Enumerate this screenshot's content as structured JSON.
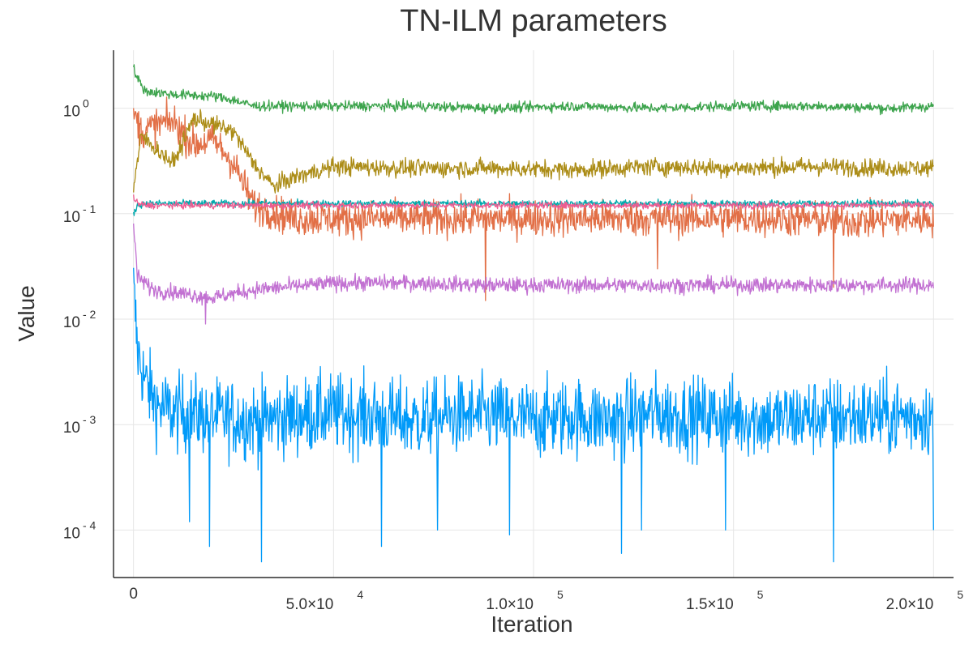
{
  "chart_data": {
    "type": "line",
    "title": "TN-ILM parameters",
    "xlabel": "Iteration",
    "ylabel": "Value",
    "xlim": [
      -5000,
      205000
    ],
    "ylim_log10": [
      -4.45,
      0.55
    ],
    "yscale": "log",
    "grid": true,
    "legend": "none",
    "x_ticks": [
      {
        "value": 0,
        "base": "0",
        "exp": ""
      },
      {
        "value": 50000,
        "base": "5.0×10",
        "exp": "4"
      },
      {
        "value": 100000,
        "base": "1.0×10",
        "exp": "5"
      },
      {
        "value": 150000,
        "base": "1.5×10",
        "exp": "5"
      },
      {
        "value": 200000,
        "base": "2.0×10",
        "exp": "5"
      }
    ],
    "y_ticks": [
      {
        "value": 1,
        "base": "10",
        "exp": "0"
      },
      {
        "value": 0.1,
        "base": "10",
        "exp": "- 1"
      },
      {
        "value": 0.01,
        "base": "10",
        "exp": "- 2"
      },
      {
        "value": 0.001,
        "base": "10",
        "exp": "- 3"
      },
      {
        "value": 0.0001,
        "base": "10",
        "exp": "- 4"
      }
    ],
    "series": [
      {
        "color": "#009af9",
        "x": [
          0,
          1000,
          3000,
          6000,
          10000,
          20000,
          30000,
          40000,
          50000,
          60000,
          70000,
          80000,
          90000,
          100000,
          110000,
          120000,
          130000,
          140000,
          150000,
          160000,
          170000,
          180000,
          190000,
          200000
        ],
        "y": [
          0.02,
          0.005,
          0.0025,
          0.0015,
          0.0013,
          0.0012,
          0.0011,
          0.0012,
          0.0013,
          0.0012,
          0.0011,
          0.0012,
          0.0012,
          0.0011,
          0.0012,
          0.0011,
          0.0013,
          0.0012,
          0.0012,
          0.0011,
          0.0012,
          0.0012,
          0.0012,
          0.0012
        ],
        "noise_log10": 0.35,
        "dips": [
          [
            14000,
            0.00012
          ],
          [
            19000,
            7e-05
          ],
          [
            32000,
            5e-05
          ],
          [
            62000,
            7e-05
          ],
          [
            76000,
            0.0001
          ],
          [
            94000,
            9e-05
          ],
          [
            122000,
            6e-05
          ],
          [
            127000,
            0.0001
          ],
          [
            148000,
            0.0001
          ],
          [
            175000,
            5e-05
          ],
          [
            200000,
            0.0001
          ]
        ]
      },
      {
        "color": "#e26f46",
        "x": [
          0,
          2000,
          6000,
          10000,
          15000,
          20000,
          25000,
          30000,
          40000,
          60000,
          80000,
          100000,
          120000,
          140000,
          160000,
          180000,
          200000
        ],
        "y": [
          0.9,
          0.6,
          0.7,
          0.75,
          0.45,
          0.5,
          0.3,
          0.12,
          0.09,
          0.09,
          0.09,
          0.09,
          0.09,
          0.09,
          0.09,
          0.085,
          0.09
        ],
        "noise_log10": 0.16,
        "dips": [
          [
            88000,
            0.015
          ],
          [
            131000,
            0.03
          ],
          [
            175000,
            0.02
          ]
        ]
      },
      {
        "color": "#3da44d",
        "x": [
          0,
          1000,
          3000,
          10000,
          20000,
          25000,
          30000,
          50000,
          70000,
          90000,
          110000,
          130000,
          150000,
          170000,
          190000,
          200000
        ],
        "y": [
          2.4,
          1.9,
          1.45,
          1.35,
          1.3,
          1.2,
          1.05,
          1.05,
          1.05,
          1.0,
          1.05,
          1.0,
          1.05,
          1.05,
          1.0,
          1.05
        ],
        "noise_log10": 0.045,
        "dips": []
      },
      {
        "color": "#c271d2",
        "x": [
          0,
          1000,
          5000,
          15000,
          20000,
          30000,
          50000,
          70000,
          90000,
          110000,
          130000,
          150000,
          170000,
          190000,
          200000
        ],
        "y": [
          0.08,
          0.025,
          0.019,
          0.017,
          0.016,
          0.019,
          0.022,
          0.022,
          0.021,
          0.021,
          0.021,
          0.021,
          0.021,
          0.021,
          0.021
        ],
        "noise_log10": 0.07,
        "dips": [
          [
            18000,
            0.009
          ]
        ]
      },
      {
        "color": "#ac8d18",
        "x": [
          0,
          2000,
          6000,
          10000,
          15000,
          20000,
          25000,
          30000,
          35000,
          40000,
          50000,
          70000,
          90000,
          110000,
          130000,
          150000,
          170000,
          190000,
          200000
        ],
        "y": [
          0.18,
          0.55,
          0.4,
          0.3,
          0.8,
          0.7,
          0.6,
          0.3,
          0.18,
          0.22,
          0.28,
          0.27,
          0.27,
          0.26,
          0.28,
          0.27,
          0.28,
          0.27,
          0.27
        ],
        "noise_log10": 0.08,
        "dips": []
      },
      {
        "color": "#00a9ad",
        "x": [
          0,
          1000,
          3000,
          20000,
          50000,
          100000,
          150000,
          200000
        ],
        "y": [
          0.1,
          0.12,
          0.125,
          0.125,
          0.125,
          0.125,
          0.125,
          0.125
        ],
        "noise_log10": 0.03,
        "dips": []
      },
      {
        "color": "#ed5d92",
        "x": [
          0,
          1000,
          3000,
          20000,
          50000,
          100000,
          150000,
          200000
        ],
        "y": [
          0.14,
          0.125,
          0.12,
          0.12,
          0.12,
          0.12,
          0.12,
          0.12
        ],
        "noise_log10": 0.03,
        "dips": []
      }
    ]
  }
}
